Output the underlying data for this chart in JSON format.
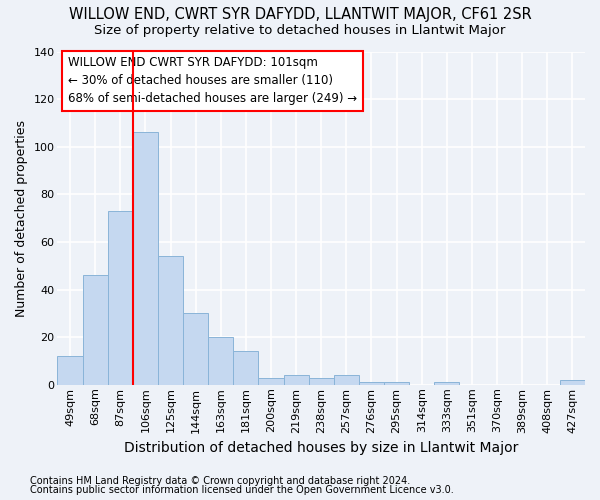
{
  "title": "WILLOW END, CWRT SYR DAFYDD, LLANTWIT MAJOR, CF61 2SR",
  "subtitle": "Size of property relative to detached houses in Llantwit Major",
  "xlabel": "Distribution of detached houses by size in Llantwit Major",
  "ylabel": "Number of detached properties",
  "footnote1": "Contains HM Land Registry data © Crown copyright and database right 2024.",
  "footnote2": "Contains public sector information licensed under the Open Government Licence v3.0.",
  "categories": [
    "49sqm",
    "68sqm",
    "87sqm",
    "106sqm",
    "125sqm",
    "144sqm",
    "163sqm",
    "181sqm",
    "200sqm",
    "219sqm",
    "238sqm",
    "257sqm",
    "276sqm",
    "295sqm",
    "314sqm",
    "333sqm",
    "351sqm",
    "370sqm",
    "389sqm",
    "408sqm",
    "427sqm"
  ],
  "values": [
    12,
    46,
    73,
    106,
    54,
    30,
    20,
    14,
    3,
    4,
    3,
    4,
    1,
    1,
    0,
    1,
    0,
    0,
    0,
    0,
    2
  ],
  "bar_color": "#c5d8f0",
  "bar_edge_color": "#8ab4d8",
  "background_color": "#eef2f8",
  "grid_color": "#ffffff",
  "vline_x": 2.5,
  "vline_color": "red",
  "annotation_text": "WILLOW END CWRT SYR DAFYDD: 101sqm\n← 30% of detached houses are smaller (110)\n68% of semi-detached houses are larger (249) →",
  "annotation_box_color": "white",
  "annotation_box_edge": "red",
  "ylim": [
    0,
    140
  ],
  "yticks": [
    0,
    20,
    40,
    60,
    80,
    100,
    120,
    140
  ],
  "title_fontsize": 10.5,
  "subtitle_fontsize": 9.5,
  "ylabel_fontsize": 9,
  "xlabel_fontsize": 10,
  "tick_fontsize": 8,
  "annotation_fontsize": 8.5,
  "footnote_fontsize": 7
}
